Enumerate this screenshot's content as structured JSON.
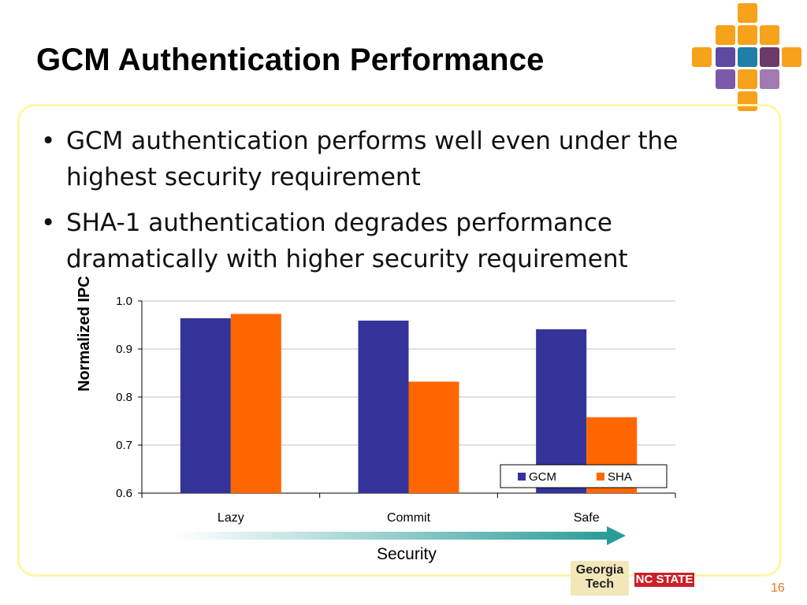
{
  "slide": {
    "title": "GCM Authentication Performance",
    "bullets": [
      "GCM authentication performs well even under the highest security requirement",
      "SHA-1 authentication degrades performance dramatically with higher security requirement"
    ],
    "bullet_symbol": "•",
    "page_number": "16",
    "axis_arrow_label": "Security",
    "logos": {
      "georgia_tech_line1": "Georgia",
      "georgia_tech_line2": "Tech",
      "nc_state": "NC STATE"
    }
  },
  "colors": {
    "gcm": "#333399",
    "sha": "#ff6600",
    "accent_orange": "#f7a21b",
    "border_yellow": "#fdf7a6",
    "arrow_teal": "#2a9d99"
  },
  "chart_data": {
    "type": "bar",
    "categories": [
      "Lazy",
      "Commit",
      "Safe"
    ],
    "series": [
      {
        "name": "GCM",
        "values": [
          0.964,
          0.959,
          0.941
        ]
      },
      {
        "name": "SHA",
        "values": [
          0.973,
          0.832,
          0.758
        ]
      }
    ],
    "ylabel": "Normalized IPC",
    "ylim": [
      0.6,
      1.0
    ],
    "yticks": [
      "0.6",
      "0.7",
      "0.8",
      "0.9",
      "1.0"
    ],
    "grid": true,
    "legend_position": "bottom-right"
  }
}
